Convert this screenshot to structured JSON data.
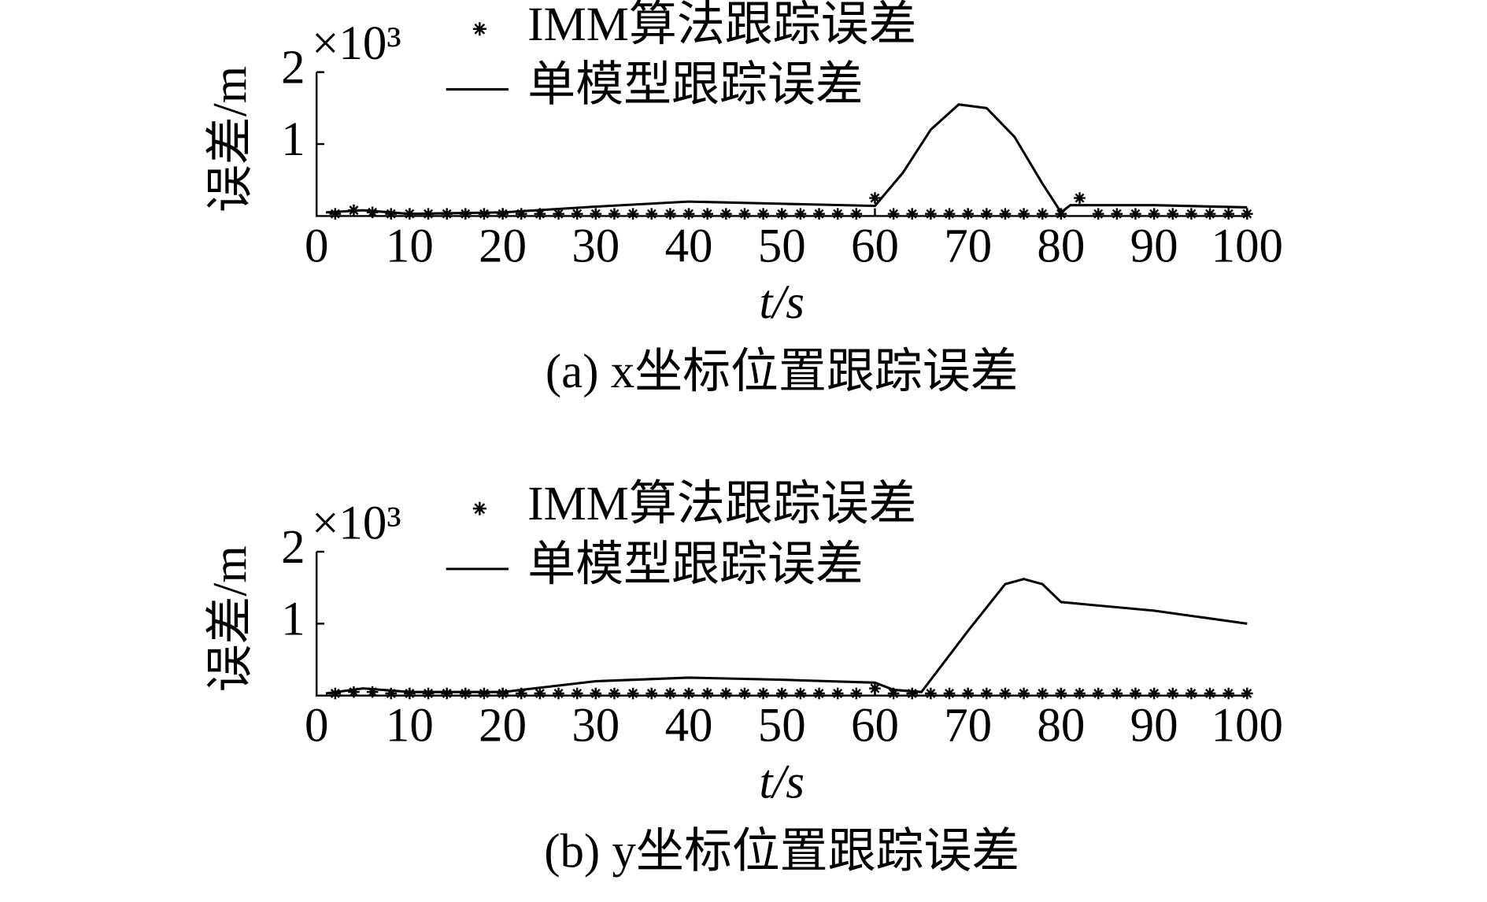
{
  "chart_data": [
    {
      "type": "line",
      "y_multiplier": "×10³",
      "ylabel": "误差/m",
      "xlabel": "t/s",
      "caption": "(a) x坐标位置跟踪误差",
      "xlim": [
        0,
        100
      ],
      "xticks": [
        0,
        10,
        20,
        30,
        40,
        50,
        60,
        70,
        80,
        90,
        100
      ],
      "ylim": [
        0,
        2
      ],
      "yticks": [
        1,
        2
      ],
      "series": [
        {
          "name": "IMM算法跟踪误差",
          "marker": "star",
          "color": "#000000",
          "x": [
            2,
            4,
            6,
            8,
            10,
            12,
            14,
            16,
            18,
            20,
            22,
            24,
            26,
            28,
            30,
            32,
            34,
            36,
            38,
            40,
            42,
            44,
            46,
            48,
            50,
            52,
            54,
            56,
            58,
            60,
            62,
            64,
            66,
            68,
            70,
            72,
            74,
            76,
            78,
            80,
            82,
            84,
            86,
            88,
            90,
            92,
            94,
            96,
            98,
            100
          ],
          "values": [
            0.03,
            0.08,
            0.05,
            0.03,
            0.03,
            0.03,
            0.03,
            0.03,
            0.03,
            0.03,
            0.03,
            0.03,
            0.03,
            0.03,
            0.03,
            0.03,
            0.03,
            0.03,
            0.03,
            0.03,
            0.03,
            0.03,
            0.03,
            0.03,
            0.03,
            0.03,
            0.03,
            0.03,
            0.03,
            0.25,
            0.03,
            0.03,
            0.03,
            0.03,
            0.03,
            0.03,
            0.03,
            0.03,
            0.03,
            0.03,
            0.25,
            0.03,
            0.03,
            0.03,
            0.03,
            0.03,
            0.03,
            0.03,
            0.03,
            0.03
          ]
        },
        {
          "name": "单模型跟踪误差",
          "marker": "none",
          "color": "#000000",
          "x": [
            1,
            5,
            10,
            20,
            30,
            40,
            50,
            60,
            63,
            66,
            69,
            72,
            75,
            78,
            80,
            81,
            90,
            100
          ],
          "values": [
            0.05,
            0.08,
            0.03,
            0.05,
            0.13,
            0.2,
            0.17,
            0.14,
            0.6,
            1.2,
            1.55,
            1.5,
            1.1,
            0.45,
            0.05,
            0.15,
            0.15,
            0.12
          ]
        }
      ]
    },
    {
      "type": "line",
      "y_multiplier": "×10³",
      "ylabel": "误差/m",
      "xlabel": "t/s",
      "caption": "(b) y坐标位置跟踪误差",
      "xlim": [
        0,
        100
      ],
      "xticks": [
        0,
        10,
        20,
        30,
        40,
        50,
        60,
        70,
        80,
        90,
        100
      ],
      "ylim": [
        0,
        2
      ],
      "yticks": [
        1,
        2
      ],
      "series": [
        {
          "name": "IMM算法跟踪误差",
          "marker": "star",
          "color": "#000000",
          "x": [
            2,
            4,
            6,
            8,
            10,
            12,
            14,
            16,
            18,
            20,
            22,
            24,
            26,
            28,
            30,
            32,
            34,
            36,
            38,
            40,
            42,
            44,
            46,
            48,
            50,
            52,
            54,
            56,
            58,
            60,
            62,
            64,
            66,
            68,
            70,
            72,
            74,
            76,
            78,
            80,
            82,
            84,
            86,
            88,
            90,
            92,
            94,
            96,
            98,
            100
          ],
          "values": [
            0.03,
            0.05,
            0.05,
            0.03,
            0.03,
            0.03,
            0.03,
            0.03,
            0.03,
            0.03,
            0.03,
            0.03,
            0.03,
            0.03,
            0.03,
            0.03,
            0.03,
            0.03,
            0.03,
            0.03,
            0.03,
            0.03,
            0.03,
            0.03,
            0.03,
            0.03,
            0.03,
            0.03,
            0.03,
            0.1,
            0.03,
            0.03,
            0.03,
            0.03,
            0.03,
            0.03,
            0.03,
            0.03,
            0.03,
            0.03,
            0.03,
            0.03,
            0.03,
            0.03,
            0.03,
            0.03,
            0.03,
            0.03,
            0.03,
            0.03
          ]
        },
        {
          "name": "单模型跟踪误差",
          "marker": "none",
          "color": "#000000",
          "x": [
            1,
            5,
            10,
            20,
            30,
            40,
            50,
            60,
            62,
            65,
            70,
            74,
            76,
            78,
            80,
            90,
            100
          ],
          "values": [
            0.03,
            0.1,
            0.05,
            0.05,
            0.2,
            0.25,
            0.22,
            0.18,
            0.08,
            0.05,
            0.9,
            1.55,
            1.62,
            1.55,
            1.3,
            1.18,
            1.0
          ]
        }
      ]
    }
  ]
}
